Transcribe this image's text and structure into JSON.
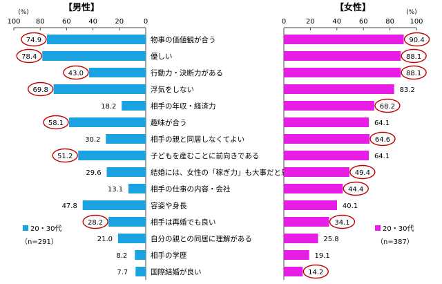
{
  "chart_data": {
    "type": "bar",
    "categories": [
      "物事の価値観が合う",
      "優しい",
      "行動力・決断力がある",
      "浮気をしない",
      "相手の年収・経済力",
      "趣味が合う",
      "相手の親と同居しなくてよい",
      "子どもを産むことに前向きである",
      "結婚には、女性の「稼ぎ力」も大事だと思う",
      "相手の仕事の内容・会社",
      "容姿や身長",
      "相手は再婚でも良い",
      "自分の親との同居に理解がある",
      "相手の学歴",
      "国際結婚が良い"
    ],
    "series": [
      {
        "name": "20・30代",
        "panel_title": "【男性】",
        "n_label": "（n=291）",
        "color": "#1aa3e0",
        "values": [
          74.9,
          78.4,
          43.0,
          69.8,
          18.2,
          58.1,
          30.2,
          51.2,
          29.6,
          13.1,
          47.8,
          28.2,
          21.0,
          8.2,
          7.7
        ],
        "value_labels": [
          "74.9",
          "78.4",
          "43.0",
          "69.8",
          "18.2",
          "58.1",
          "30.2",
          "51.2",
          "29.6",
          "13.1",
          "47.8",
          "28.2",
          "21.0",
          "8.2",
          "7.7"
        ],
        "circled": [
          true,
          true,
          true,
          true,
          false,
          true,
          false,
          true,
          false,
          false,
          false,
          true,
          false,
          false,
          false
        ],
        "xlim": [
          0,
          100
        ],
        "reversed": true,
        "ticks": [
          "100",
          "80",
          "60",
          "40",
          "20",
          "0"
        ],
        "unit": "(%)"
      },
      {
        "name": "20・30代",
        "panel_title": "【女性】",
        "n_label": "（n=387）",
        "color": "#e61ee6",
        "values": [
          90.4,
          88.1,
          88.1,
          83.2,
          68.2,
          64.1,
          64.6,
          64.1,
          49.4,
          44.4,
          40.1,
          34.1,
          25.8,
          19.1,
          14.2
        ],
        "value_labels": [
          "90.4",
          "88.1",
          "88.1",
          "83.2",
          "68.2",
          "64.1",
          "64.6",
          "64.1",
          "49.4",
          "44.4",
          "40.1",
          "34.1",
          "25.8",
          "19.1",
          "14.2"
        ],
        "circled": [
          true,
          true,
          true,
          false,
          true,
          false,
          true,
          false,
          true,
          true,
          false,
          true,
          false,
          false,
          true
        ],
        "xlim": [
          0,
          100
        ],
        "reversed": false,
        "ticks": [
          "0",
          "20",
          "40",
          "60",
          "80",
          "100"
        ],
        "unit": "(%)"
      }
    ],
    "highlight_colors": {
      "male": "#c00000",
      "female": "#c00000"
    }
  }
}
